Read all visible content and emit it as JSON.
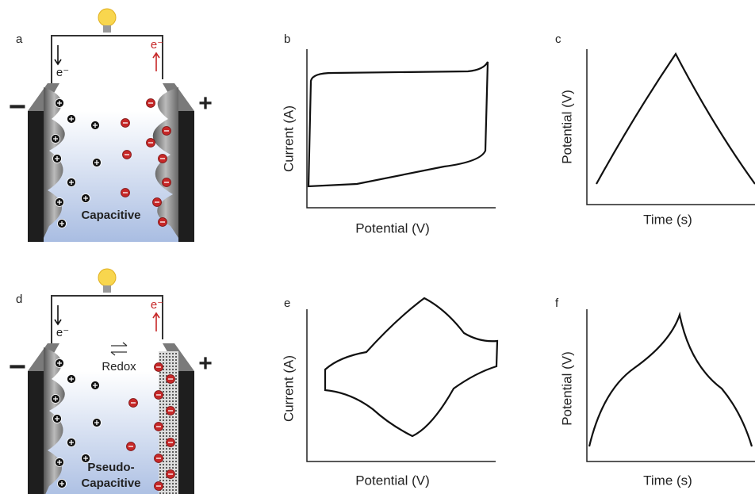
{
  "panels": [
    {
      "label": "a",
      "electron_left": "e⁻",
      "electron_right": "e⁻",
      "negative": "−",
      "positive": "+",
      "caption": [
        "Capacitive"
      ]
    },
    {
      "label": "b",
      "y_label": "Current (A)",
      "x_label": "Potential (V)"
    },
    {
      "label": "c",
      "y_label": "Potential (V)",
      "x_label": "Time (s)"
    },
    {
      "label": "d",
      "electron_left": "e⁻",
      "electron_right": "e⁻",
      "negative": "−",
      "positive": "+",
      "redox": "Redox",
      "caption": [
        "Pseudo-",
        "Capacitive"
      ]
    },
    {
      "label": "e",
      "y_label": "Current (A)",
      "x_label": "Potential (V)"
    },
    {
      "label": "f",
      "y_label": "Potential (V)",
      "x_label": "Time (s)"
    }
  ]
}
